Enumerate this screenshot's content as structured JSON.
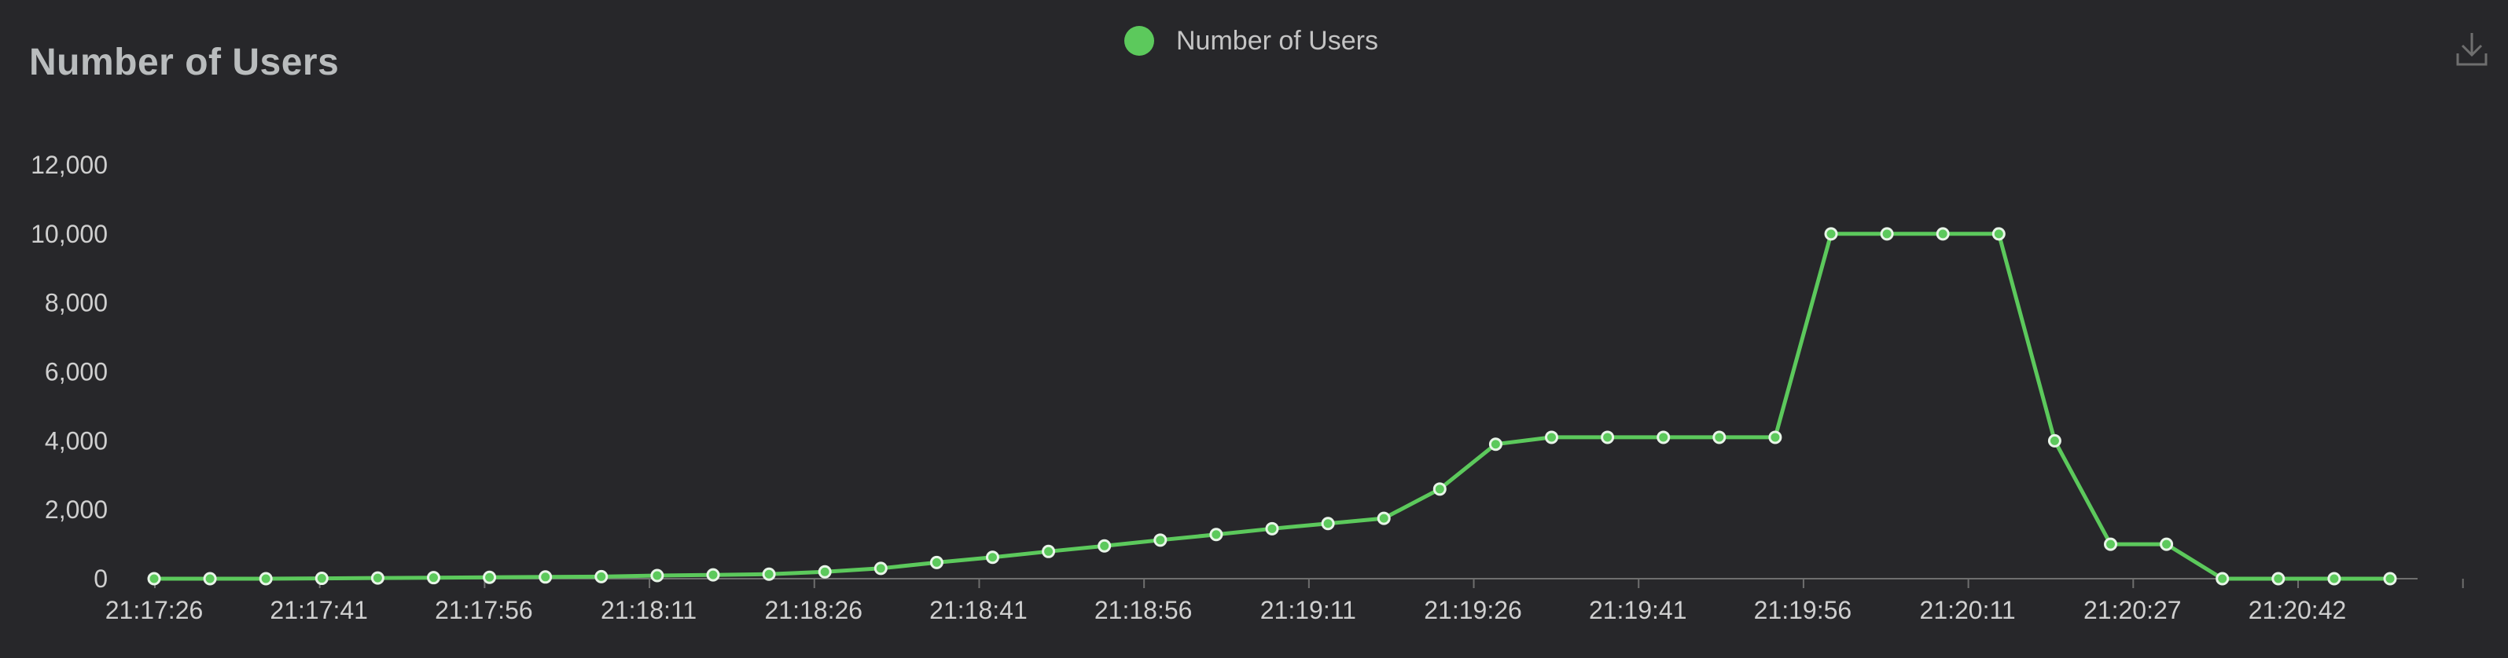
{
  "chart_data": {
    "type": "line",
    "title": "Number of Users",
    "xlabel": "",
    "ylabel": "",
    "ylim": [
      0,
      12000
    ],
    "yticks": [
      0,
      2000,
      4000,
      6000,
      8000,
      10000,
      12000
    ],
    "ytick_labels": [
      "0",
      "2,000",
      "4,000",
      "6,000",
      "8,000",
      "10,000",
      "12,000"
    ],
    "xtick_labels": [
      "21:17:26",
      "21:17:41",
      "21:17:56",
      "21:18:11",
      "21:18:26",
      "21:18:41",
      "21:18:56",
      "21:19:11",
      "21:19:26",
      "21:19:41",
      "21:19:56",
      "21:20:11",
      "21:20:27",
      "21:20:42"
    ],
    "x_step_seconds": 5,
    "legend_position": "top-center",
    "grid": false,
    "series": [
      {
        "name": "Number of Users",
        "color": "#5cc95c",
        "values": [
          0,
          0,
          0,
          10,
          20,
          30,
          40,
          50,
          60,
          90,
          110,
          130,
          200,
          300,
          470,
          620,
          790,
          950,
          1120,
          1280,
          1450,
          1600,
          1750,
          2600,
          3900,
          4100,
          4100,
          4100,
          4100,
          4100,
          10000,
          10000,
          10000,
          10000,
          4000,
          1000,
          1000,
          0,
          0,
          0,
          0
        ]
      }
    ]
  }
}
